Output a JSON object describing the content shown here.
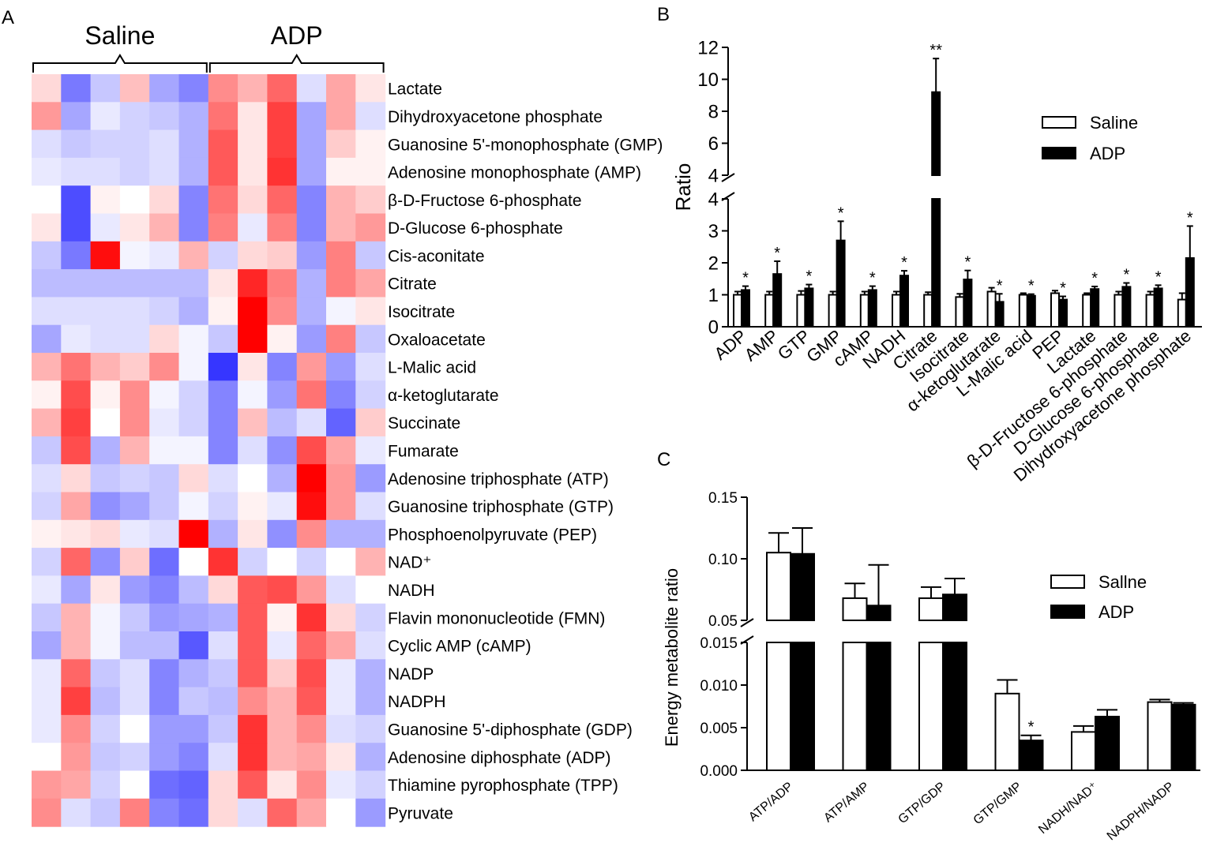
{
  "figure": {
    "panel_a_label": "A",
    "panel_b_label": "B",
    "panel_c_label": "C"
  },
  "chart_data": [
    {
      "panel": "A",
      "type": "heatmap",
      "group_labels": [
        "Saline",
        "ADP"
      ],
      "columns_per_group": 6,
      "color_scale": {
        "low": "#2020ff",
        "mid": "#ffffff",
        "high": "#ff0000"
      },
      "rows": [
        "Lactate",
        "Dihydroxyacetone phosphate",
        "Guanosine 5'-monophosphate (GMP)",
        "Adenosine monophosphate (AMP)",
        "β-D-Fructose 6-phosphate",
        "D-Glucose 6-phosphate",
        "Cis-aconitate",
        "Citrate",
        "Isocitrate",
        "Oxaloacetate",
        "L-Malic acid",
        "α-ketoglutarate",
        "Succinate",
        "Fumarate",
        "Adenosine triphosphate (ATP)",
        "Guanosine triphosphate (GTP)",
        "Phosphoenolpyruvate (PEP)",
        "NAD⁺",
        "NADH",
        "Flavin mononucleotide (FMN)",
        "Cyclic AMP  (cAMP)",
        "NADP",
        "NADPH",
        "Guanosine 5'-diphosphate (GDP)",
        "Adenosine diphosphate (ADP)",
        "Thiamine pyrophosphate (TPP)",
        "Pyruvate"
      ],
      "values": [
        [
          0.15,
          -0.6,
          -0.25,
          0.25,
          -0.4,
          -0.55,
          0.45,
          0.3,
          0.6,
          -0.15,
          0.35,
          0.1
        ],
        [
          0.4,
          -0.4,
          -0.1,
          -0.2,
          -0.25,
          -0.35,
          0.55,
          0.1,
          0.75,
          -0.4,
          0.35,
          -0.15
        ],
        [
          -0.15,
          -0.25,
          -0.2,
          -0.2,
          -0.15,
          -0.35,
          0.65,
          0.1,
          0.75,
          -0.4,
          0.2,
          0.05
        ],
        [
          -0.1,
          -0.15,
          -0.15,
          -0.2,
          -0.15,
          -0.35,
          0.65,
          0.1,
          0.8,
          -0.4,
          0.05,
          0.05
        ],
        [
          0.0,
          -0.8,
          0.05,
          0.0,
          0.15,
          -0.55,
          0.55,
          0.15,
          0.6,
          -0.55,
          0.3,
          0.2
        ],
        [
          0.1,
          -0.8,
          -0.1,
          0.1,
          0.3,
          -0.55,
          0.5,
          -0.1,
          0.5,
          -0.55,
          0.3,
          0.4
        ],
        [
          -0.25,
          -0.6,
          0.95,
          -0.05,
          -0.1,
          0.3,
          -0.2,
          0.15,
          0.2,
          -0.45,
          0.5,
          -0.25
        ],
        [
          -0.3,
          -0.3,
          -0.3,
          -0.3,
          -0.3,
          -0.3,
          0.1,
          0.85,
          0.5,
          -0.35,
          0.5,
          0.35
        ],
        [
          -0.15,
          -0.15,
          -0.15,
          -0.15,
          -0.2,
          -0.35,
          0.05,
          1.0,
          0.45,
          -0.35,
          -0.05,
          0.1
        ],
        [
          -0.4,
          -0.1,
          -0.15,
          -0.15,
          0.15,
          -0.05,
          -0.25,
          1.0,
          0.05,
          -0.45,
          0.5,
          -0.25
        ],
        [
          0.3,
          0.55,
          0.3,
          0.2,
          0.45,
          -0.05,
          -0.9,
          0.1,
          -0.55,
          0.4,
          -0.45,
          -0.15
        ],
        [
          0.05,
          0.7,
          0.05,
          0.45,
          -0.05,
          -0.2,
          -0.55,
          -0.05,
          -0.45,
          0.55,
          -0.55,
          -0.2
        ],
        [
          0.3,
          0.75,
          0.0,
          0.45,
          -0.1,
          -0.2,
          -0.55,
          0.25,
          -0.3,
          -0.15,
          -0.7,
          0.2
        ],
        [
          -0.25,
          0.7,
          -0.35,
          0.3,
          -0.05,
          -0.05,
          -0.55,
          -0.15,
          -0.5,
          0.7,
          0.35,
          -0.1
        ],
        [
          -0.15,
          0.15,
          -0.25,
          -0.2,
          -0.25,
          0.15,
          -0.15,
          0.0,
          -0.35,
          1.0,
          0.4,
          -0.45
        ],
        [
          -0.2,
          0.35,
          -0.5,
          -0.4,
          -0.25,
          -0.05,
          -0.2,
          0.05,
          -0.1,
          0.95,
          0.4,
          -0.15
        ],
        [
          0.05,
          0.1,
          0.15,
          -0.1,
          -0.15,
          1.0,
          -0.35,
          0.1,
          -0.5,
          0.45,
          -0.35,
          -0.35
        ],
        [
          -0.2,
          0.6,
          -0.5,
          0.2,
          -0.65,
          0.0,
          0.8,
          -0.2,
          0.0,
          -0.2,
          0.0,
          0.3
        ],
        [
          -0.1,
          -0.4,
          0.1,
          -0.45,
          -0.55,
          -0.3,
          0.15,
          0.65,
          0.7,
          0.4,
          -0.15,
          0.0
        ],
        [
          -0.25,
          0.3,
          -0.05,
          -0.25,
          -0.45,
          -0.4,
          -0.35,
          0.65,
          0.05,
          0.8,
          0.15,
          -0.2
        ],
        [
          -0.4,
          0.3,
          -0.05,
          -0.3,
          -0.3,
          -0.75,
          -0.15,
          0.65,
          -0.1,
          0.6,
          0.35,
          -0.15
        ],
        [
          -0.1,
          0.6,
          -0.25,
          -0.15,
          -0.55,
          -0.35,
          -0.25,
          0.65,
          0.2,
          0.7,
          -0.1,
          -0.35
        ],
        [
          -0.1,
          0.75,
          -0.3,
          -0.15,
          -0.55,
          -0.25,
          -0.3,
          0.45,
          0.3,
          0.65,
          -0.1,
          -0.35
        ],
        [
          -0.1,
          0.45,
          -0.2,
          0.0,
          -0.45,
          -0.45,
          -0.25,
          0.8,
          0.3,
          0.45,
          -0.15,
          -0.2
        ],
        [
          0.0,
          0.4,
          -0.25,
          -0.2,
          -0.45,
          -0.55,
          -0.15,
          0.8,
          0.3,
          0.35,
          0.1,
          -0.35
        ],
        [
          0.4,
          0.35,
          -0.2,
          0.0,
          -0.65,
          -0.7,
          0.15,
          0.65,
          0.1,
          0.45,
          -0.1,
          -0.2
        ],
        [
          0.45,
          -0.15,
          -0.25,
          0.5,
          -0.55,
          -0.65,
          0.15,
          -0.15,
          0.6,
          0.35,
          0.0,
          -0.45
        ]
      ]
    },
    {
      "panel": "B",
      "type": "bar",
      "ylabel": "Ratio",
      "ylim_lower": [
        0,
        4
      ],
      "ylim_upper": [
        4,
        12
      ],
      "yticks_lower": [
        "0",
        "1",
        "2",
        "3",
        "4"
      ],
      "yticks_upper": [
        "4",
        "6",
        "8",
        "10",
        "12"
      ],
      "categories": [
        "ADP",
        "AMP",
        "GTP",
        "GMP",
        "cAMP",
        "NADH",
        "Citrate",
        "Isocitrate",
        "α-ketoglutarate",
        "L-Malic acid",
        "PEP",
        "Lactate",
        "β-D-Fructose 6-phosphate",
        "D-Glucose 6-phosphate",
        "Dihydroxyacetone phosphate"
      ],
      "series": [
        {
          "name": "Saline",
          "color": "#ffffff",
          "values": [
            1,
            1,
            1,
            1,
            1,
            1,
            1,
            0.93,
            1.1,
            1,
            1.05,
            1,
            1,
            1,
            0.85
          ],
          "errors": [
            0.1,
            0.1,
            0.12,
            0.1,
            0.1,
            0.1,
            0.08,
            0.1,
            0.12,
            0.05,
            0.08,
            0.05,
            0.1,
            0.1,
            0.2
          ]
        },
        {
          "name": "ADP",
          "color": "#000000",
          "values": [
            1.15,
            1.65,
            1.2,
            2.7,
            1.15,
            1.6,
            9.2,
            1.48,
            0.78,
            0.97,
            0.85,
            1.18,
            1.25,
            1.2,
            2.15
          ],
          "errors": [
            0.12,
            0.4,
            0.12,
            0.6,
            0.12,
            0.15,
            2.1,
            0.28,
            0.25,
            0.05,
            0.1,
            0.08,
            0.12,
            0.1,
            1.0
          ]
        }
      ],
      "significance": [
        "*",
        "*",
        "*",
        "*",
        "*",
        "*",
        "**",
        "*",
        "*",
        "*",
        "*",
        "*",
        "*",
        "*",
        "*"
      ]
    },
    {
      "panel": "C",
      "type": "bar",
      "ylabel": "Energy metabolite ratio",
      "ylim_lower": [
        0,
        0.015
      ],
      "ylim_upper": [
        0.05,
        0.15
      ],
      "yticks_lower": [
        "0.000",
        "0.005",
        "0.010",
        "0.015"
      ],
      "yticks_upper": [
        "0.05",
        "0.10",
        "0.15"
      ],
      "categories": [
        "ATP/ADP",
        "ATP/AMP",
        "GTP/GDP",
        "GTP/GMP",
        "NADH/NAD⁺",
        "NADPH/NADP"
      ],
      "series": [
        {
          "name": "Sallne",
          "color": "#ffffff",
          "values": [
            0.105,
            0.068,
            0.068,
            0.009,
            0.0045,
            0.008
          ],
          "errors": [
            0.016,
            0.012,
            0.009,
            0.0016,
            0.0007,
            0.0003
          ]
        },
        {
          "name": "ADP",
          "color": "#000000",
          "values": [
            0.104,
            0.062,
            0.071,
            0.0035,
            0.0063,
            0.0077
          ],
          "errors": [
            0.021,
            0.033,
            0.013,
            0.0006,
            0.0008,
            0.0002
          ]
        }
      ],
      "significance": [
        "",
        "",
        "",
        "*",
        "",
        ""
      ]
    }
  ]
}
